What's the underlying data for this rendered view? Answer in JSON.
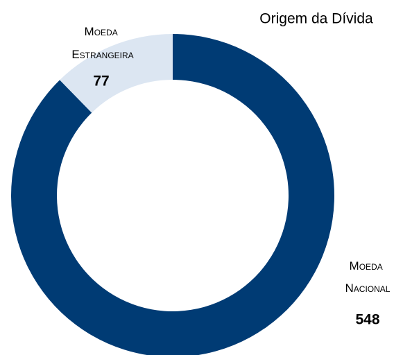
{
  "chart_data": {
    "type": "donut",
    "title": "Origem da Dívida",
    "categories": [
      "Moeda Nacional",
      "Moeda Estrangeira"
    ],
    "values": [
      548,
      77
    ],
    "colors": [
      "#003b74",
      "#dce6f2"
    ]
  }
}
